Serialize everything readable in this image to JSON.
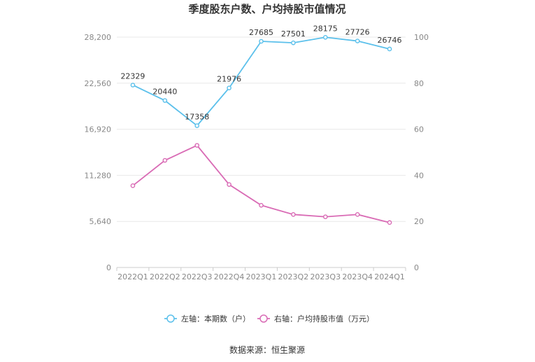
{
  "chart_data": {
    "type": "line",
    "title": "季度股东户数、户均持股市值情况",
    "categories": [
      "2022Q1",
      "2022Q2",
      "2022Q3",
      "2022Q4",
      "2023Q1",
      "2023Q2",
      "2023Q3",
      "2023Q4",
      "2024Q1"
    ],
    "series": [
      {
        "name": "左轴：本期数（户）",
        "axis": "left",
        "color": "#5bc0eb",
        "values": [
          22329,
          20440,
          17358,
          21976,
          27685,
          27501,
          28175,
          27726,
          26746
        ],
        "labels": [
          "22329",
          "20440",
          "17358",
          "21976",
          "27685",
          "27501",
          "28175",
          "27726",
          "26746"
        ]
      },
      {
        "name": "右轴：户均持股市值（万元）",
        "axis": "right",
        "color": "#d96bb5",
        "values": [
          35.5,
          46.5,
          53,
          36,
          27,
          23,
          22,
          23,
          19.5
        ]
      }
    ],
    "left_axis": {
      "ylim": [
        0,
        28200
      ],
      "ticks": [
        "0",
        "5,640",
        "11,280",
        "16,920",
        "22,560",
        "28,200"
      ]
    },
    "right_axis": {
      "ylim": [
        0,
        100
      ],
      "ticks": [
        "0",
        "20",
        "40",
        "60",
        "80",
        "100"
      ]
    },
    "grid": true,
    "legend_position": "bottom"
  },
  "source": "数据来源：恒生聚源"
}
